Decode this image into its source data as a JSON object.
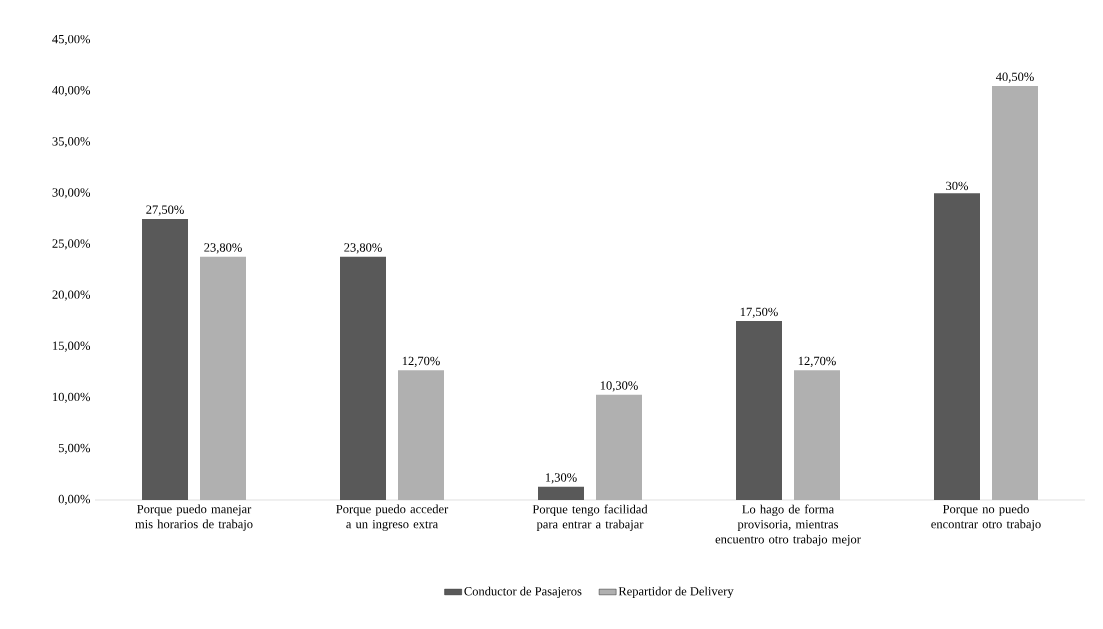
{
  "chart_data": {
    "type": "bar",
    "categories": [
      "Porque puedo manejar mis horarios de trabajo",
      "Porque puedo acceder a un ingreso extra",
      "Porque tengo facilidad para entrar a trabajar",
      "Lo hago de forma provisoria, mientras encuentro otro trabajo mejor",
      "Porque no puedo encontrar otro trabajo"
    ],
    "series": [
      {
        "name": "Conductor de Pasajeros",
        "color": "#595959",
        "values": [
          27.5,
          23.8,
          1.3,
          17.5,
          30
        ],
        "value_labels": [
          "27,50%",
          "23,80%",
          "1,30%",
          "17,50%",
          "30%"
        ]
      },
      {
        "name": "Repartidor de Delivery",
        "color": "#b0b0b0",
        "values": [
          23.8,
          12.7,
          10.3,
          12.7,
          40.5
        ],
        "value_labels": [
          "23,80%",
          "12,70%",
          "10,30%",
          "12,70%",
          "40,50%"
        ]
      }
    ],
    "ylim": [
      0,
      45
    ],
    "yticks": [
      {
        "value": 0,
        "label": "0,00%"
      },
      {
        "value": 5,
        "label": "5,00%"
      },
      {
        "value": 10,
        "label": "10,00%"
      },
      {
        "value": 15,
        "label": "15,00%"
      },
      {
        "value": 20,
        "label": "20,00%"
      },
      {
        "value": 25,
        "label": "25,00%"
      },
      {
        "value": 30,
        "label": "30,00%"
      },
      {
        "value": 35,
        "label": "35,00%"
      },
      {
        "value": 40,
        "label": "40,00%"
      },
      {
        "value": 45,
        "label": "45,00%"
      }
    ],
    "grid": false,
    "legend": "bottom"
  }
}
